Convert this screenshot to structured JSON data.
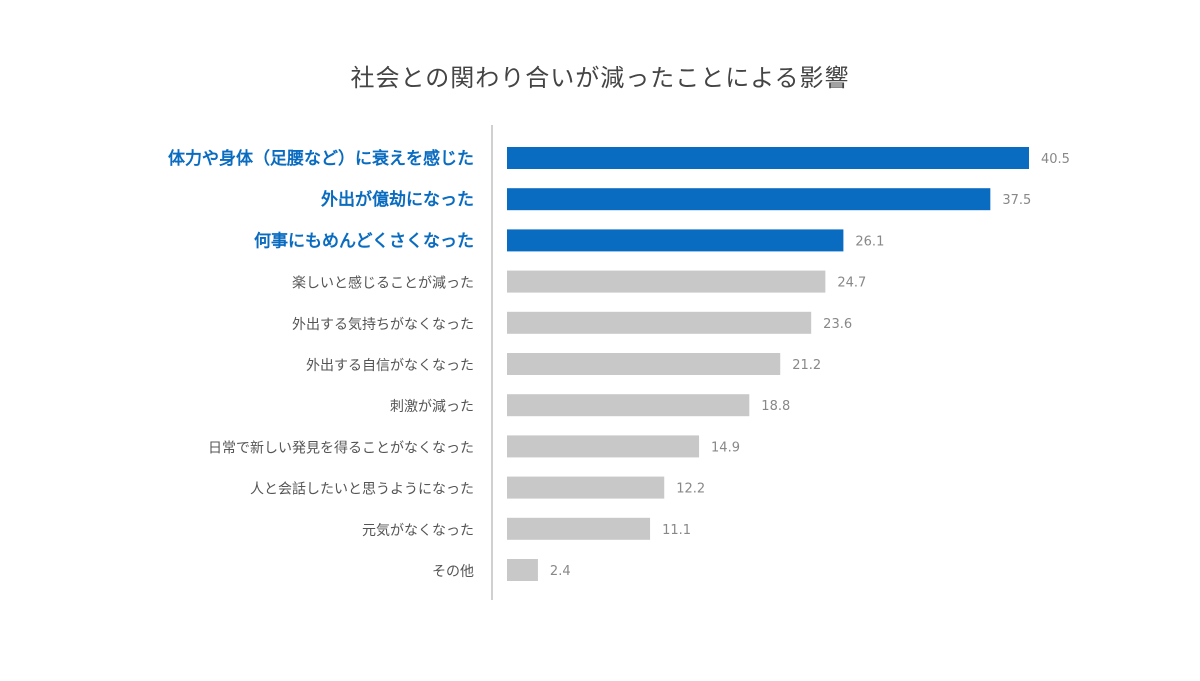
{
  "chart_data": {
    "type": "bar",
    "orientation": "horizontal",
    "title": "社会との関わり合いが減ったことによる影響",
    "categories": [
      "体力や身体（足腰など）に衰えを感じた",
      "外出が億劫になった",
      "何事にもめんどくさくなった",
      "楽しいと感じることが減った",
      "外出する気持ちがなくなった",
      "外出する自信がなくなった",
      "刺激が減った",
      "日常で新しい発見を得ることがなくなった",
      "人と会話したいと思うようになった",
      "元気がなくなった",
      "その他"
    ],
    "values": [
      40.5,
      37.5,
      26.1,
      24.7,
      23.6,
      21.2,
      18.8,
      14.9,
      12.2,
      11.1,
      2.4
    ],
    "value_labels": [
      "40.5",
      "37.5",
      "26.1",
      "24.7",
      "23.6",
      "21.2",
      "18.8",
      "14.9",
      "12.2",
      "11.1",
      "2.4"
    ],
    "highlighted": [
      true,
      true,
      true,
      false,
      false,
      false,
      false,
      false,
      false,
      false,
      false
    ],
    "xlim": [
      0,
      40.5
    ],
    "grid": false,
    "legend": "none",
    "colors": {
      "highlight_bar": "#0a6cc0",
      "highlight_text": "#0a6cc0",
      "normal_bar": "#c8c8c8",
      "normal_text": "#555555",
      "value_text": "#888888",
      "axis": "#d0d0d0"
    }
  }
}
